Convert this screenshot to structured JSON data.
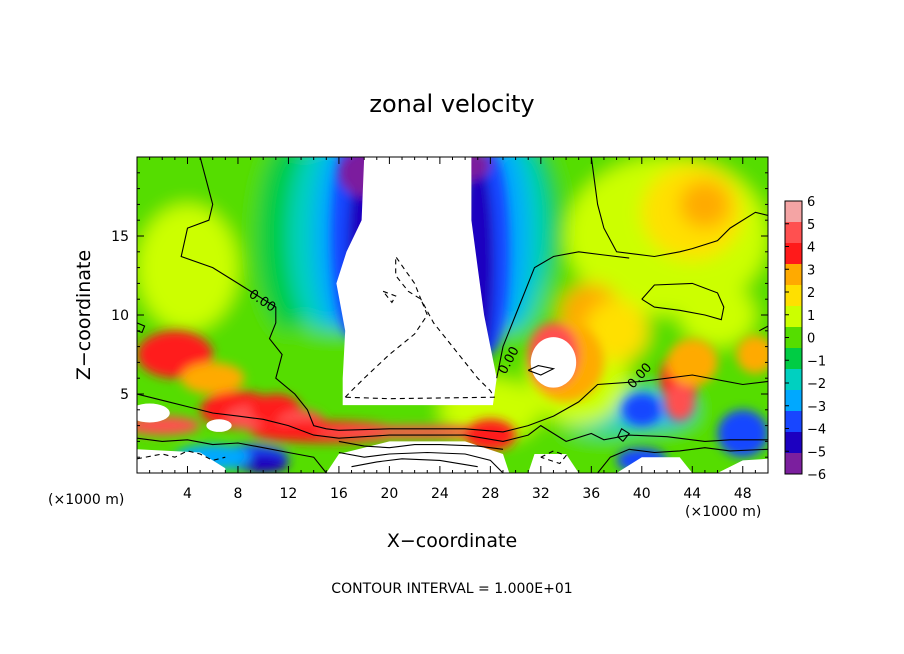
{
  "chart_data": {
    "type": "heatmap",
    "title": "zonal velocity",
    "xlabel": "X−coordinate",
    "ylabel": "Z−coordinate",
    "x_unit": "(×1000 m)",
    "x_unit_right": "(×1000 m)",
    "xlim": [
      0,
      50
    ],
    "ylim": [
      0,
      20
    ],
    "xticks": [
      4,
      8,
      12,
      16,
      20,
      24,
      28,
      32,
      36,
      40,
      44,
      48
    ],
    "yticks": [
      5,
      10,
      15
    ],
    "contour_label": "0.00",
    "footer": "CONTOUR INTERVAL = 1.000E+01",
    "colorbar": {
      "levels": [
        6,
        5,
        4,
        3,
        2,
        1,
        0,
        -1,
        -2,
        -3,
        -4,
        -5,
        -6
      ],
      "labels": [
        "6",
        "5",
        "4",
        "3",
        "2",
        "1",
        "0",
        "−1",
        "−2",
        "−3",
        "−4",
        "−5",
        "−6"
      ],
      "colors": [
        "#f4a4a4",
        "#ff5050",
        "#ff1a1a",
        "#ffaa00",
        "#ffe000",
        "#ccff00",
        "#55dd00",
        "#00cc44",
        "#00d0c0",
        "#00a8ff",
        "#1846ff",
        "#1c00c0",
        "#7b1f9e"
      ]
    }
  }
}
